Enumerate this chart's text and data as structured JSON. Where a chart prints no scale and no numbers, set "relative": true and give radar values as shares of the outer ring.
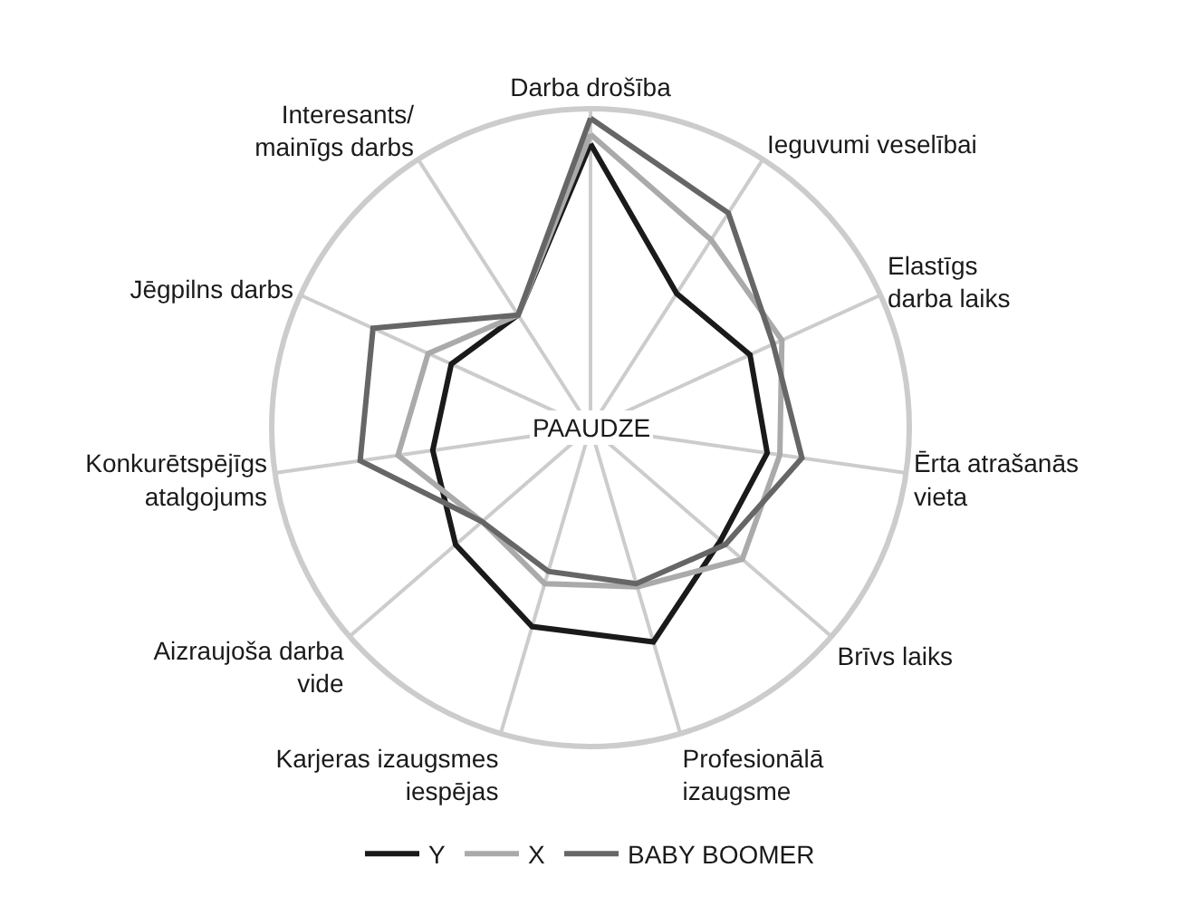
{
  "chart_data": {
    "type": "radar",
    "relative": true,
    "grid": true,
    "legend": "bottom",
    "line_style": "solid",
    "marker": "none",
    "categories": [
      "Darba drošība",
      "Ieguvumi veselībai",
      "Elastīgs\ndarba laiks",
      "Ērta atrašanās\nvieta",
      "Brīvs laiks",
      "Profesionālā\nizaugsme",
      "Karjeras izaugsmes\niespējas",
      "Aizraujoša darba\nvide",
      "Konkurētspējīgs\natalgojums",
      "Jēgpilns darbs",
      "Interesants/\nmainīgs darbs"
    ],
    "series": [
      {
        "name": "Y",
        "color": "#1a1a1a",
        "values": [
          0.89,
          0.5,
          0.55,
          0.56,
          0.54,
          0.7,
          0.65,
          0.56,
          0.5,
          0.48,
          0.42
        ]
      },
      {
        "name": "X",
        "color": "#aaaaaa",
        "values": [
          0.92,
          0.7,
          0.66,
          0.6,
          0.63,
          0.52,
          0.51,
          0.45,
          0.61,
          0.56,
          0.42
        ]
      },
      {
        "name": "BABY BOOMER",
        "color": "#666666",
        "values": [
          0.97,
          0.8,
          0.63,
          0.67,
          0.56,
          0.51,
          0.47,
          0.45,
          0.73,
          0.75,
          0.42
        ]
      }
    ],
    "annotations": [
      "PAAUDZE"
    ]
  }
}
